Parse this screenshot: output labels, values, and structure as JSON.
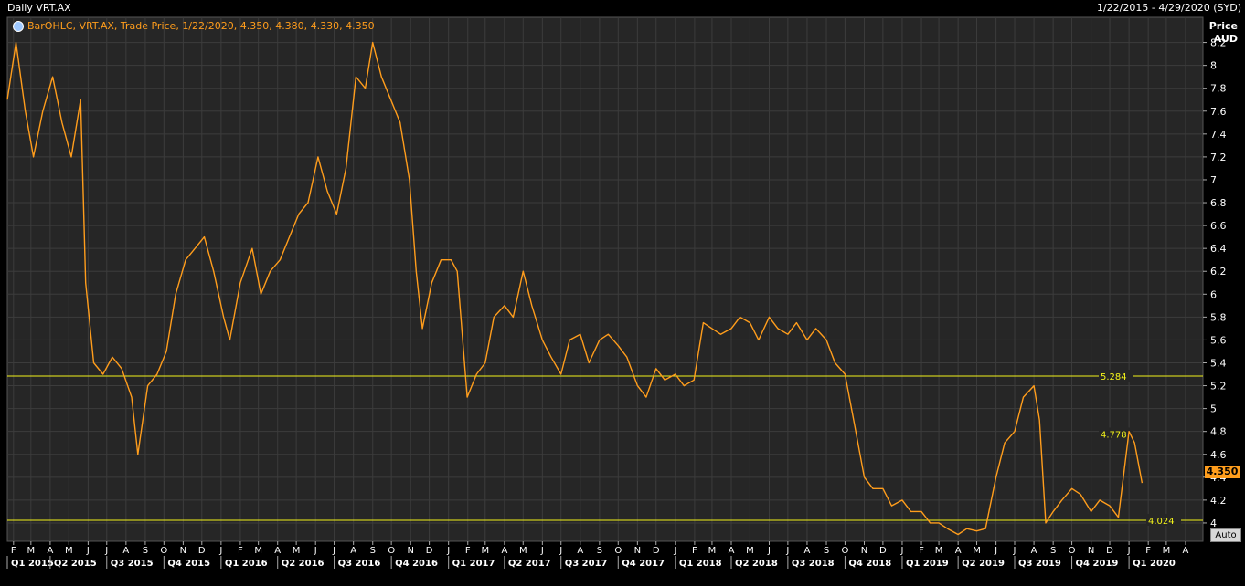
{
  "header": {
    "title": "Daily VRT.AX",
    "date_range": "1/22/2015 - 4/29/2020 (SYD)"
  },
  "legend": {
    "text": "BarOHLC, VRT.AX, Trade Price, 1/22/2020, 4.350, 4.380, 4.330, 4.350"
  },
  "axis": {
    "title_line1": "Price",
    "title_line2": "AUD",
    "auto_label": "Auto",
    "last_price": "4.350"
  },
  "colors": {
    "background": "#000000",
    "plot_bg": "#262626",
    "grid": "#3c3c3c",
    "series": "#ff9d1c",
    "hlines": "#f2f21a"
  },
  "chart_data": {
    "type": "line",
    "title": "Daily VRT.AX",
    "ylabel": "Price AUD",
    "ylim": [
      3.84,
      8.42
    ],
    "y_ticks": [
      "8.2",
      "8",
      "7.8",
      "7.6",
      "7.4",
      "7.2",
      "7",
      "6.8",
      "6.6",
      "6.4",
      "6.2",
      "6",
      "5.8",
      "5.6",
      "5.4",
      "5.2",
      "5",
      "4.8",
      "4.6",
      "4.4",
      "4.2",
      "4"
    ],
    "x_start": "2015-01-22",
    "x_end": "2020-04-29",
    "month_labels": [
      "F",
      "M",
      "A",
      "M",
      "J",
      "J",
      "A",
      "S",
      "O",
      "N",
      "D",
      "J",
      "F",
      "M",
      "A",
      "M",
      "J",
      "J",
      "A",
      "S",
      "O",
      "N",
      "D",
      "J",
      "F",
      "M",
      "A",
      "M",
      "J",
      "J",
      "A",
      "S",
      "O",
      "N",
      "D",
      "J",
      "F",
      "M",
      "A",
      "M",
      "J",
      "J",
      "A",
      "S",
      "O",
      "N",
      "D",
      "J",
      "F",
      "M",
      "A",
      "M",
      "J",
      "J",
      "A",
      "S",
      "O",
      "N",
      "D",
      "J",
      "F",
      "M",
      "A"
    ],
    "quarter_labels": [
      "Q1 2015",
      "Q2 2015",
      "Q3 2015",
      "Q4 2015",
      "Q1 2016",
      "Q2 2016",
      "Q3 2016",
      "Q4 2016",
      "Q1 2017",
      "Q2 2017",
      "Q3 2017",
      "Q4 2017",
      "Q1 2018",
      "Q2 2018",
      "Q3 2018",
      "Q4 2018",
      "Q1 2019",
      "Q2 2019",
      "Q3 2019",
      "Q4 2019",
      "Q1 2020"
    ],
    "horizontal_lines": [
      {
        "value": 5.284,
        "label": "5.284"
      },
      {
        "value": 4.778,
        "label": "4.778"
      },
      {
        "value": 4.024,
        "label": "4.024"
      }
    ],
    "series": [
      {
        "points": [
          [
            "2015-01-22",
            7.7
          ],
          [
            "2015-02-05",
            8.2
          ],
          [
            "2015-02-20",
            7.6
          ],
          [
            "2015-03-05",
            7.2
          ],
          [
            "2015-03-20",
            7.6
          ],
          [
            "2015-04-05",
            7.9
          ],
          [
            "2015-04-20",
            7.5
          ],
          [
            "2015-05-05",
            7.2
          ],
          [
            "2015-05-20",
            7.7
          ],
          [
            "2015-05-28",
            6.1
          ],
          [
            "2015-06-10",
            5.4
          ],
          [
            "2015-06-25",
            5.3
          ],
          [
            "2015-07-10",
            5.45
          ],
          [
            "2015-07-25",
            5.35
          ],
          [
            "2015-08-10",
            5.1
          ],
          [
            "2015-08-20",
            4.6
          ],
          [
            "2015-09-05",
            5.2
          ],
          [
            "2015-09-20",
            5.3
          ],
          [
            "2015-10-05",
            5.5
          ],
          [
            "2015-10-20",
            6.0
          ],
          [
            "2015-11-05",
            6.3
          ],
          [
            "2015-11-20",
            6.4
          ],
          [
            "2015-12-05",
            6.5
          ],
          [
            "2015-12-20",
            6.2
          ],
          [
            "2016-01-05",
            5.8
          ],
          [
            "2016-01-15",
            5.6
          ],
          [
            "2016-02-01",
            6.1
          ],
          [
            "2016-02-20",
            6.4
          ],
          [
            "2016-03-05",
            6.0
          ],
          [
            "2016-03-20",
            6.2
          ],
          [
            "2016-04-05",
            6.3
          ],
          [
            "2016-04-20",
            6.5
          ],
          [
            "2016-05-05",
            6.7
          ],
          [
            "2016-05-20",
            6.8
          ],
          [
            "2016-06-05",
            7.2
          ],
          [
            "2016-06-20",
            6.9
          ],
          [
            "2016-07-05",
            6.7
          ],
          [
            "2016-07-20",
            7.1
          ],
          [
            "2016-08-05",
            7.9
          ],
          [
            "2016-08-20",
            7.8
          ],
          [
            "2016-09-01",
            8.2
          ],
          [
            "2016-09-15",
            7.9
          ],
          [
            "2016-09-30",
            7.7
          ],
          [
            "2016-10-15",
            7.5
          ],
          [
            "2016-10-30",
            7.0
          ],
          [
            "2016-11-10",
            6.2
          ],
          [
            "2016-11-20",
            5.7
          ],
          [
            "2016-12-05",
            6.1
          ],
          [
            "2016-12-20",
            6.3
          ],
          [
            "2017-01-05",
            6.3
          ],
          [
            "2017-01-15",
            6.2
          ],
          [
            "2017-01-31",
            5.1
          ],
          [
            "2017-02-15",
            5.3
          ],
          [
            "2017-03-01",
            5.4
          ],
          [
            "2017-03-15",
            5.8
          ],
          [
            "2017-04-01",
            5.9
          ],
          [
            "2017-04-15",
            5.8
          ],
          [
            "2017-05-01",
            6.2
          ],
          [
            "2017-05-15",
            5.9
          ],
          [
            "2017-06-01",
            5.6
          ],
          [
            "2017-06-15",
            5.45
          ],
          [
            "2017-07-01",
            5.3
          ],
          [
            "2017-07-15",
            5.6
          ],
          [
            "2017-08-01",
            5.65
          ],
          [
            "2017-08-15",
            5.4
          ],
          [
            "2017-09-01",
            5.6
          ],
          [
            "2017-09-15",
            5.65
          ],
          [
            "2017-10-01",
            5.55
          ],
          [
            "2017-10-15",
            5.45
          ],
          [
            "2017-11-01",
            5.2
          ],
          [
            "2017-11-15",
            5.1
          ],
          [
            "2017-12-01",
            5.35
          ],
          [
            "2017-12-15",
            5.25
          ],
          [
            "2018-01-01",
            5.3
          ],
          [
            "2018-01-15",
            5.2
          ],
          [
            "2018-01-31",
            5.25
          ],
          [
            "2018-02-15",
            5.75
          ],
          [
            "2018-03-01",
            5.7
          ],
          [
            "2018-03-15",
            5.65
          ],
          [
            "2018-04-01",
            5.7
          ],
          [
            "2018-04-15",
            5.8
          ],
          [
            "2018-05-01",
            5.75
          ],
          [
            "2018-05-15",
            5.6
          ],
          [
            "2018-06-01",
            5.8
          ],
          [
            "2018-06-15",
            5.7
          ],
          [
            "2018-07-01",
            5.65
          ],
          [
            "2018-07-15",
            5.75
          ],
          [
            "2018-08-01",
            5.6
          ],
          [
            "2018-08-15",
            5.7
          ],
          [
            "2018-09-01",
            5.6
          ],
          [
            "2018-09-15",
            5.4
          ],
          [
            "2018-10-01",
            5.3
          ],
          [
            "2018-10-15",
            4.9
          ],
          [
            "2018-11-01",
            4.4
          ],
          [
            "2018-11-15",
            4.3
          ],
          [
            "2018-12-01",
            4.3
          ],
          [
            "2018-12-15",
            4.15
          ],
          [
            "2019-01-01",
            4.2
          ],
          [
            "2019-01-15",
            4.1
          ],
          [
            "2019-02-01",
            4.1
          ],
          [
            "2019-02-15",
            4.0
          ],
          [
            "2019-03-01",
            4.0
          ],
          [
            "2019-03-15",
            3.95
          ],
          [
            "2019-04-01",
            3.9
          ],
          [
            "2019-04-15",
            3.95
          ],
          [
            "2019-05-01",
            3.93
          ],
          [
            "2019-05-15",
            3.95
          ],
          [
            "2019-06-01",
            4.4
          ],
          [
            "2019-06-15",
            4.7
          ],
          [
            "2019-07-01",
            4.8
          ],
          [
            "2019-07-15",
            5.1
          ],
          [
            "2019-08-01",
            5.2
          ],
          [
            "2019-08-10",
            4.9
          ],
          [
            "2019-08-20",
            4.0
          ],
          [
            "2019-09-01",
            4.1
          ],
          [
            "2019-09-15",
            4.2
          ],
          [
            "2019-10-01",
            4.3
          ],
          [
            "2019-10-15",
            4.25
          ],
          [
            "2019-11-01",
            4.1
          ],
          [
            "2019-11-15",
            4.2
          ],
          [
            "2019-12-01",
            4.15
          ],
          [
            "2019-12-15",
            4.05
          ],
          [
            "2020-01-01",
            4.8
          ],
          [
            "2020-01-10",
            4.7
          ],
          [
            "2020-01-22",
            4.35
          ]
        ]
      }
    ]
  }
}
